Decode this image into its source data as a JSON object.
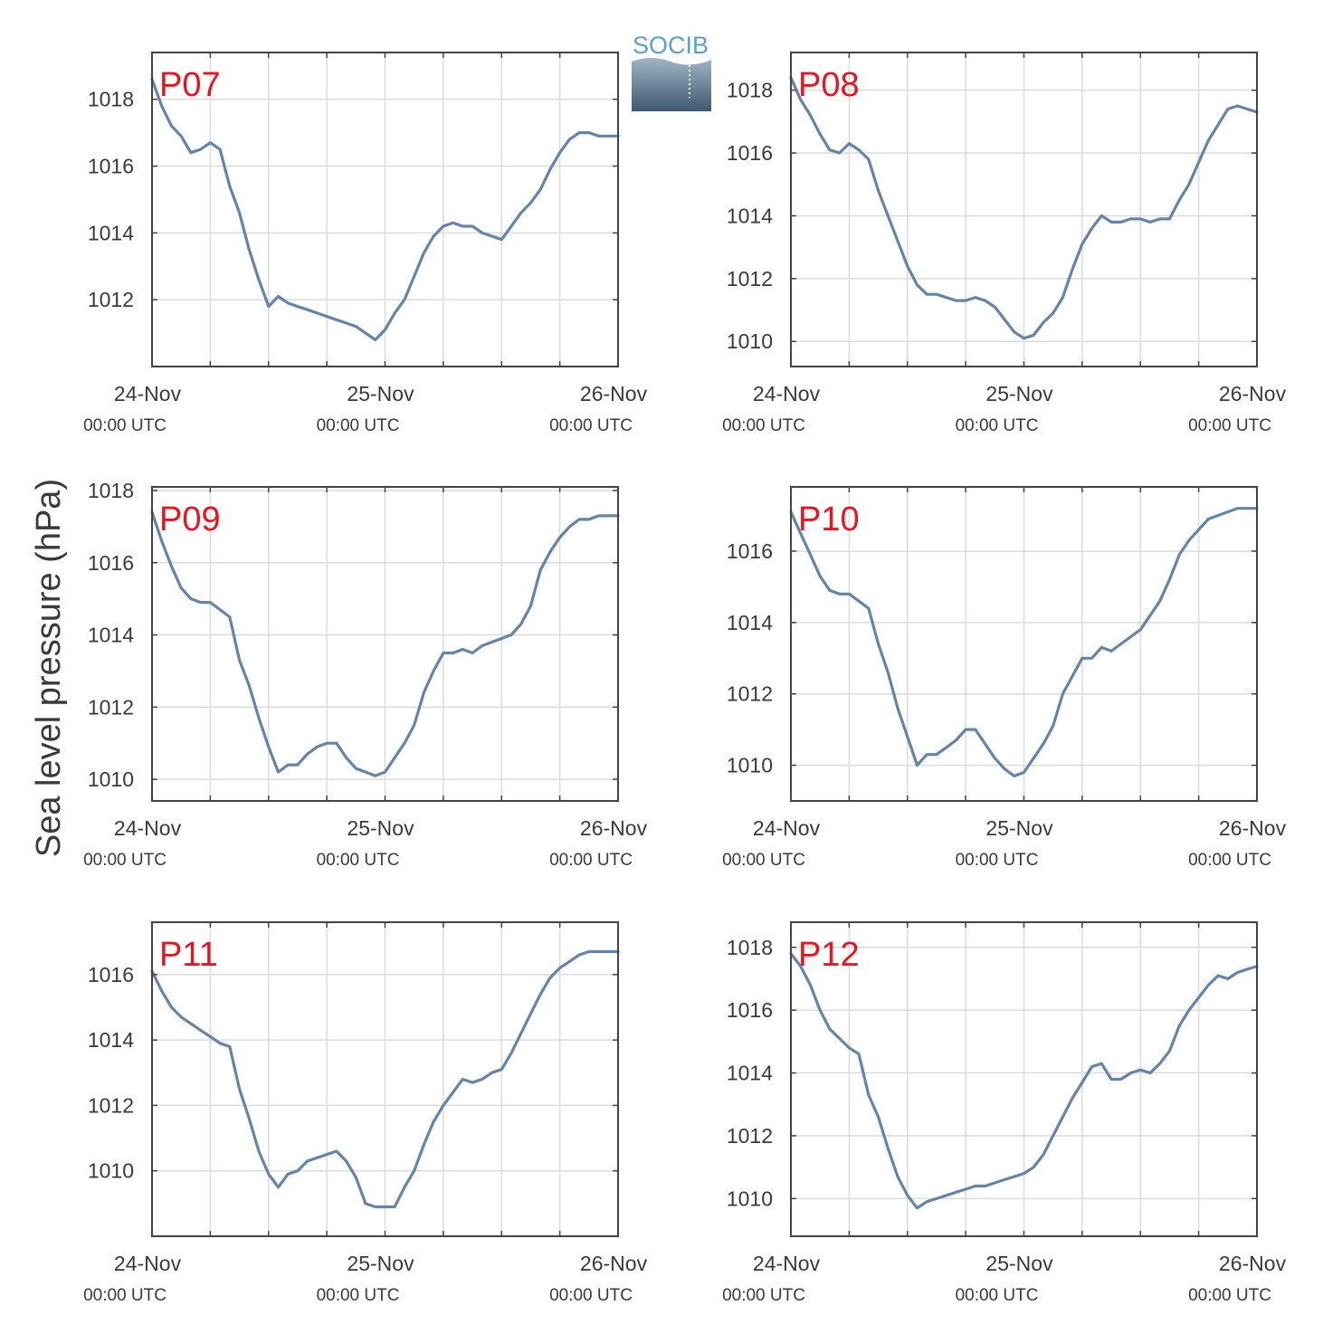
{
  "ylabel": "Sea level pressure (hPa)",
  "logo": {
    "text": "SOCIB"
  },
  "colors": {
    "line": "#6585a8",
    "title": "#e8141e",
    "grid": "#dcdcdc",
    "axis": "#444444"
  },
  "chart_data": [
    {
      "type": "line",
      "title": "P07",
      "x_tick_labels": [
        {
          "date": "24-Nov",
          "time": "00:00 UTC"
        },
        {
          "date": "25-Nov",
          "time": "00:00 UTC"
        },
        {
          "date": "26-Nov",
          "time": "00:00 UTC"
        }
      ],
      "xlim": [
        0,
        48
      ],
      "ylim": [
        1010.0,
        1019.4
      ],
      "y_ticks": [
        1012,
        1014,
        1016,
        1018
      ],
      "grid": true,
      "series": [
        {
          "x": [
            0,
            1,
            2,
            3,
            4,
            5,
            6,
            7,
            8,
            9,
            10,
            11,
            12,
            13,
            14,
            15,
            16,
            17,
            18,
            19,
            20,
            21,
            22,
            23,
            24,
            25,
            26,
            27,
            28,
            29,
            30,
            31,
            32,
            33,
            34,
            35,
            36,
            37,
            38,
            39,
            40,
            41,
            42,
            43,
            44,
            45,
            46,
            47,
            48
          ],
          "y": [
            1018.6,
            1017.8,
            1017.2,
            1016.9,
            1016.4,
            1016.5,
            1016.7,
            1016.5,
            1015.4,
            1014.6,
            1013.5,
            1012.6,
            1011.8,
            1012.1,
            1011.9,
            1011.8,
            1011.7,
            1011.6,
            1011.5,
            1011.4,
            1011.3,
            1011.2,
            1011.0,
            1010.8,
            1011.1,
            1011.6,
            1012.0,
            1012.7,
            1013.4,
            1013.9,
            1014.2,
            1014.3,
            1014.2,
            1014.2,
            1014.0,
            1013.9,
            1013.8,
            1014.2,
            1014.6,
            1014.9,
            1015.3,
            1015.9,
            1016.4,
            1016.8,
            1017.0,
            1017.0,
            1016.9,
            1016.9,
            1016.9
          ]
        }
      ]
    },
    {
      "type": "line",
      "title": "P08",
      "x_tick_labels": [
        {
          "date": "24-Nov",
          "time": "00:00 UTC"
        },
        {
          "date": "25-Nov",
          "time": "00:00 UTC"
        },
        {
          "date": "26-Nov",
          "time": "00:00 UTC"
        }
      ],
      "xlim": [
        0,
        48
      ],
      "ylim": [
        1009.2,
        1019.2
      ],
      "y_ticks": [
        1010,
        1012,
        1014,
        1016,
        1018
      ],
      "grid": true,
      "series": [
        {
          "x": [
            0,
            1,
            2,
            3,
            4,
            5,
            6,
            7,
            8,
            9,
            10,
            11,
            12,
            13,
            14,
            15,
            16,
            17,
            18,
            19,
            20,
            21,
            22,
            23,
            24,
            25,
            26,
            27,
            28,
            29,
            30,
            31,
            32,
            33,
            34,
            35,
            36,
            37,
            38,
            39,
            40,
            41,
            42,
            43,
            44,
            45,
            46,
            47,
            48
          ],
          "y": [
            1018.4,
            1017.7,
            1017.2,
            1016.6,
            1016.1,
            1016.0,
            1016.3,
            1016.1,
            1015.8,
            1014.8,
            1014.0,
            1013.2,
            1012.4,
            1011.8,
            1011.5,
            1011.5,
            1011.4,
            1011.3,
            1011.3,
            1011.4,
            1011.3,
            1011.1,
            1010.7,
            1010.3,
            1010.1,
            1010.2,
            1010.6,
            1010.9,
            1011.4,
            1012.3,
            1013.1,
            1013.6,
            1014.0,
            1013.8,
            1013.8,
            1013.9,
            1013.9,
            1013.8,
            1013.9,
            1013.9,
            1014.5,
            1015.0,
            1015.7,
            1016.4,
            1016.9,
            1017.4,
            1017.5,
            1017.4,
            1017.3
          ]
        }
      ]
    },
    {
      "type": "line",
      "title": "P09",
      "x_tick_labels": [
        {
          "date": "24-Nov",
          "time": "00:00 UTC"
        },
        {
          "date": "25-Nov",
          "time": "00:00 UTC"
        },
        {
          "date": "26-Nov",
          "time": "00:00 UTC"
        }
      ],
      "xlim": [
        0,
        48
      ],
      "ylim": [
        1009.4,
        1018.1
      ],
      "y_ticks": [
        1010,
        1012,
        1014,
        1016,
        1018
      ],
      "grid": true,
      "series": [
        {
          "x": [
            0,
            1,
            2,
            3,
            4,
            5,
            6,
            7,
            8,
            9,
            10,
            11,
            12,
            13,
            14,
            15,
            16,
            17,
            18,
            19,
            20,
            21,
            22,
            23,
            24,
            25,
            26,
            27,
            28,
            29,
            30,
            31,
            32,
            33,
            34,
            35,
            36,
            37,
            38,
            39,
            40,
            41,
            42,
            43,
            44,
            45,
            46,
            47,
            48
          ],
          "y": [
            1017.4,
            1016.6,
            1015.9,
            1015.3,
            1015.0,
            1014.9,
            1014.9,
            1014.7,
            1014.5,
            1013.3,
            1012.6,
            1011.7,
            1010.9,
            1010.2,
            1010.4,
            1010.4,
            1010.7,
            1010.9,
            1011.0,
            1011.0,
            1010.6,
            1010.3,
            1010.2,
            1010.1,
            1010.2,
            1010.6,
            1011.0,
            1011.5,
            1012.4,
            1013.0,
            1013.5,
            1013.5,
            1013.6,
            1013.5,
            1013.7,
            1013.8,
            1013.9,
            1014.0,
            1014.3,
            1014.8,
            1015.8,
            1016.3,
            1016.7,
            1017.0,
            1017.2,
            1017.2,
            1017.3,
            1017.3,
            1017.3
          ]
        }
      ]
    },
    {
      "type": "line",
      "title": "P10",
      "x_tick_labels": [
        {
          "date": "24-Nov",
          "time": "00:00 UTC"
        },
        {
          "date": "25-Nov",
          "time": "00:00 UTC"
        },
        {
          "date": "26-Nov",
          "time": "00:00 UTC"
        }
      ],
      "xlim": [
        0,
        48
      ],
      "ylim": [
        1009.0,
        1017.8
      ],
      "y_ticks": [
        1010,
        1012,
        1014,
        1016
      ],
      "grid": true,
      "series": [
        {
          "x": [
            0,
            1,
            2,
            3,
            4,
            5,
            6,
            7,
            8,
            9,
            10,
            11,
            12,
            13,
            14,
            15,
            16,
            17,
            18,
            19,
            20,
            21,
            22,
            23,
            24,
            25,
            26,
            27,
            28,
            29,
            30,
            31,
            32,
            33,
            34,
            35,
            36,
            37,
            38,
            39,
            40,
            41,
            42,
            43,
            44,
            45,
            46,
            47,
            48
          ],
          "y": [
            1017.1,
            1016.5,
            1015.9,
            1015.3,
            1014.9,
            1014.8,
            1014.8,
            1014.6,
            1014.4,
            1013.4,
            1012.6,
            1011.6,
            1010.8,
            1010.0,
            1010.3,
            1010.3,
            1010.5,
            1010.7,
            1011.0,
            1011.0,
            1010.6,
            1010.2,
            1009.9,
            1009.7,
            1009.8,
            1010.2,
            1010.6,
            1011.1,
            1012.0,
            1012.5,
            1013.0,
            1013.0,
            1013.3,
            1013.2,
            1013.4,
            1013.6,
            1013.8,
            1014.2,
            1014.6,
            1015.2,
            1015.9,
            1016.3,
            1016.6,
            1016.9,
            1017.0,
            1017.1,
            1017.2,
            1017.2,
            1017.2
          ]
        }
      ]
    },
    {
      "type": "line",
      "title": "P11",
      "x_tick_labels": [
        {
          "date": "24-Nov",
          "time": "00:00 UTC"
        },
        {
          "date": "25-Nov",
          "time": "00:00 UTC"
        },
        {
          "date": "26-Nov",
          "time": "00:00 UTC"
        }
      ],
      "xlim": [
        0,
        48
      ],
      "ylim": [
        1008.0,
        1017.6
      ],
      "y_ticks": [
        1010,
        1012,
        1014,
        1016
      ],
      "grid": true,
      "series": [
        {
          "x": [
            0,
            1,
            2,
            3,
            4,
            5,
            6,
            7,
            8,
            9,
            10,
            11,
            12,
            13,
            14,
            15,
            16,
            17,
            18,
            19,
            20,
            21,
            22,
            23,
            24,
            25,
            26,
            27,
            28,
            29,
            30,
            31,
            32,
            33,
            34,
            35,
            36,
            37,
            38,
            39,
            40,
            41,
            42,
            43,
            44,
            45,
            46,
            47,
            48
          ],
          "y": [
            1016.1,
            1015.5,
            1015.0,
            1014.7,
            1014.5,
            1014.3,
            1014.1,
            1013.9,
            1013.8,
            1012.5,
            1011.6,
            1010.6,
            1009.9,
            1009.5,
            1009.9,
            1010.0,
            1010.3,
            1010.4,
            1010.5,
            1010.6,
            1010.3,
            1009.8,
            1009.0,
            1008.9,
            1008.9,
            1008.9,
            1009.5,
            1010.0,
            1010.8,
            1011.5,
            1012.0,
            1012.4,
            1012.8,
            1012.7,
            1012.8,
            1013.0,
            1013.1,
            1013.6,
            1014.2,
            1014.8,
            1015.4,
            1015.9,
            1016.2,
            1016.4,
            1016.6,
            1016.7,
            1016.7,
            1016.7,
            1016.7
          ]
        }
      ]
    },
    {
      "type": "line",
      "title": "P12",
      "x_tick_labels": [
        {
          "date": "24-Nov",
          "time": "00:00 UTC"
        },
        {
          "date": "25-Nov",
          "time": "00:00 UTC"
        },
        {
          "date": "26-Nov",
          "time": "00:00 UTC"
        }
      ],
      "xlim": [
        0,
        48
      ],
      "ylim": [
        1008.8,
        1018.8
      ],
      "y_ticks": [
        1010,
        1012,
        1014,
        1016,
        1018
      ],
      "grid": true,
      "series": [
        {
          "x": [
            0,
            1,
            2,
            3,
            4,
            5,
            6,
            7,
            8,
            9,
            10,
            11,
            12,
            13,
            14,
            15,
            16,
            17,
            18,
            19,
            20,
            21,
            22,
            23,
            24,
            25,
            26,
            27,
            28,
            29,
            30,
            31,
            32,
            33,
            34,
            35,
            36,
            37,
            38,
            39,
            40,
            41,
            42,
            43,
            44,
            45,
            46,
            47,
            48
          ],
          "y": [
            1017.8,
            1017.4,
            1016.8,
            1016.0,
            1015.4,
            1015.1,
            1014.8,
            1014.6,
            1013.3,
            1012.6,
            1011.6,
            1010.7,
            1010.1,
            1009.7,
            1009.9,
            1010.0,
            1010.1,
            1010.2,
            1010.3,
            1010.4,
            1010.4,
            1010.5,
            1010.6,
            1010.7,
            1010.8,
            1011.0,
            1011.4,
            1012.0,
            1012.6,
            1013.2,
            1013.7,
            1014.2,
            1014.3,
            1013.8,
            1013.8,
            1014.0,
            1014.1,
            1014.0,
            1014.3,
            1014.7,
            1015.5,
            1016.0,
            1016.4,
            1016.8,
            1017.1,
            1017.0,
            1017.2,
            1017.3,
            1017.4
          ]
        }
      ]
    }
  ]
}
